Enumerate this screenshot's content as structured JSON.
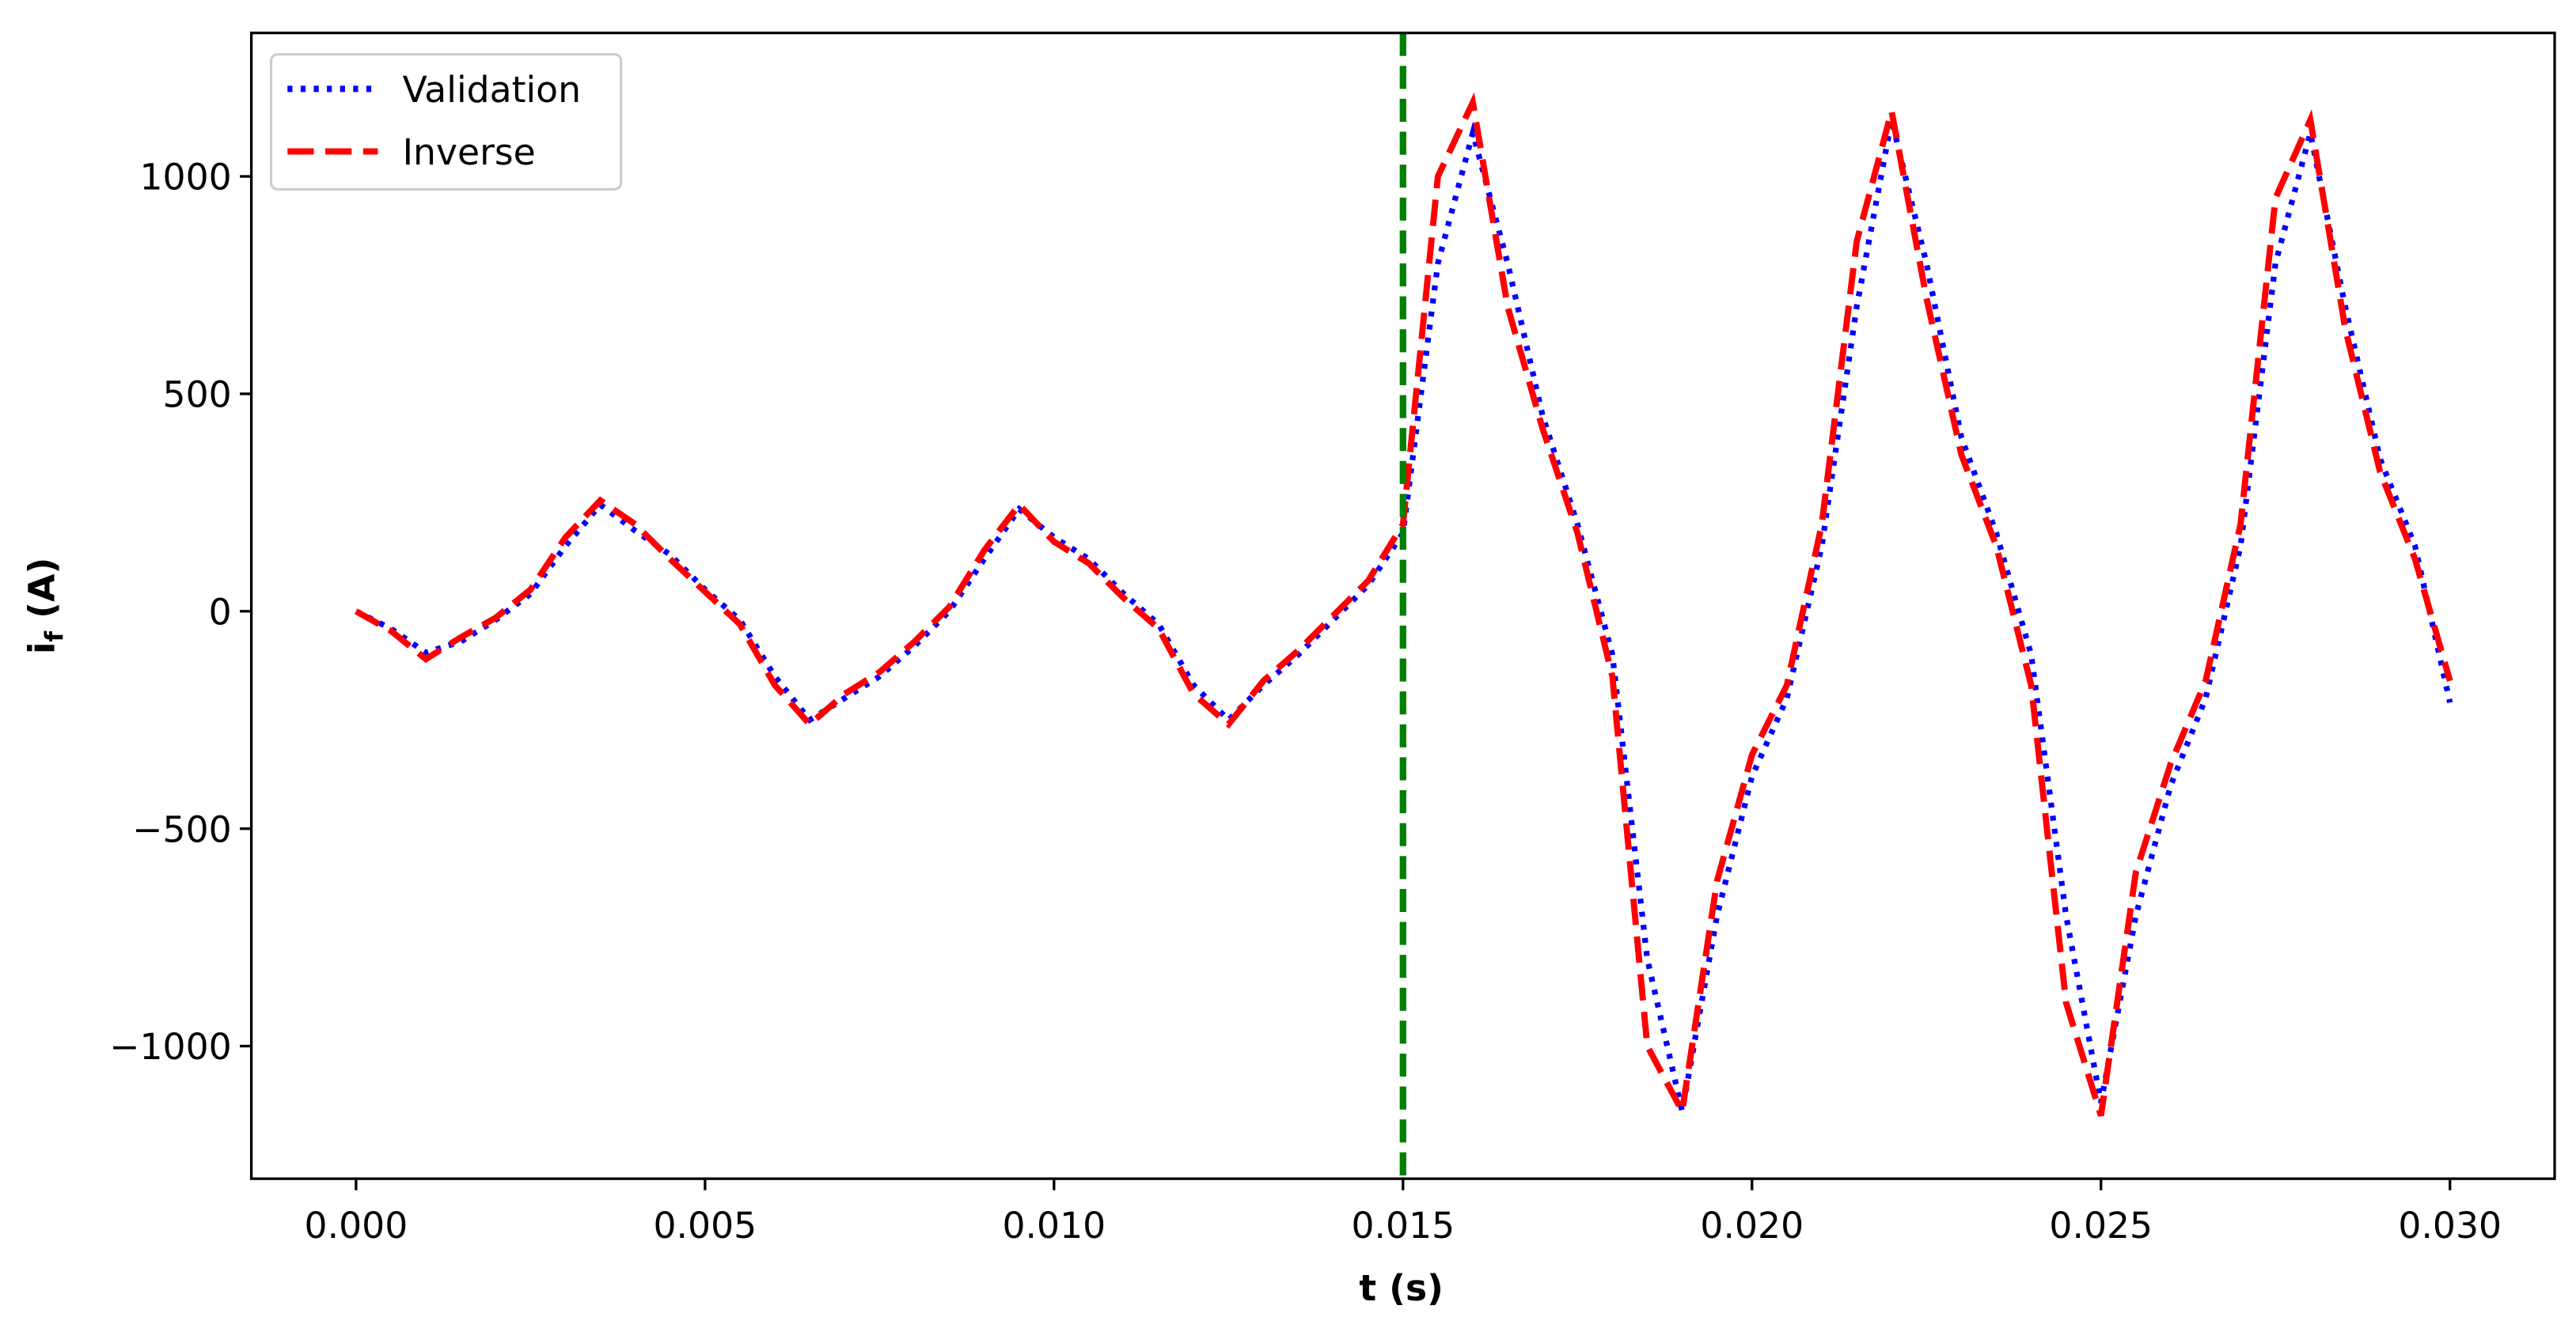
{
  "chart_data": {
    "type": "line",
    "xlabel": "t (s)",
    "ylabel": [
      "i",
      "f",
      " (A)"
    ],
    "x": [
      0,
      0.0005,
      0.001,
      0.0015,
      0.002,
      0.0025,
      0.003,
      0.0035,
      0.004,
      0.0045,
      0.005,
      0.0055,
      0.006,
      0.0065,
      0.007,
      0.0075,
      0.008,
      0.0085,
      0.009,
      0.0095,
      0.01,
      0.0105,
      0.011,
      0.0115,
      0.012,
      0.0125,
      0.013,
      0.0135,
      0.014,
      0.0145,
      0.015,
      0.0155,
      0.016,
      0.0165,
      0.017,
      0.0175,
      0.018,
      0.0185,
      0.019,
      0.0195,
      0.02,
      0.0205,
      0.021,
      0.0215,
      0.022,
      0.0225,
      0.023,
      0.0235,
      0.024,
      0.0245,
      0.025,
      0.0255,
      0.026,
      0.0265,
      0.027,
      0.0275,
      0.028,
      0.0285,
      0.029,
      0.0295,
      0.03
    ],
    "series": [
      {
        "name": "Validation",
        "color": "#0000ff",
        "style": "dotted",
        "values": [
          0,
          -40,
          -95,
          -70,
          -20,
          40,
          150,
          245,
          185,
          130,
          50,
          -20,
          -150,
          -250,
          -200,
          -150,
          -80,
          0,
          120,
          235,
          170,
          120,
          40,
          -30,
          -170,
          -250,
          -170,
          -100,
          -20,
          60,
          180,
          800,
          1100,
          800,
          450,
          200,
          -100,
          -800,
          -1150,
          -700,
          -380,
          -200,
          150,
          700,
          1130,
          800,
          400,
          180,
          -100,
          -700,
          -1130,
          -700,
          -400,
          -200,
          150,
          800,
          1100,
          700,
          350,
          150,
          -210
        ]
      },
      {
        "name": "Inverse",
        "color": "#ff0000",
        "style": "dashed",
        "values": [
          0,
          -45,
          -110,
          -60,
          -15,
          50,
          170,
          255,
          200,
          120,
          45,
          -30,
          -170,
          -260,
          -190,
          -140,
          -70,
          10,
          140,
          245,
          160,
          110,
          30,
          -40,
          -190,
          -260,
          -160,
          -90,
          -10,
          70,
          200,
          1000,
          1170,
          700,
          420,
          180,
          -150,
          -1000,
          -1150,
          -620,
          -330,
          -170,
          200,
          850,
          1150,
          720,
          360,
          150,
          -170,
          -900,
          -1160,
          -600,
          -350,
          -160,
          200,
          950,
          1130,
          650,
          320,
          120,
          -160
        ]
      }
    ],
    "vline": {
      "x": 0.015,
      "color": "#008000"
    },
    "xlim": [
      -0.0015,
      0.0315
    ],
    "ylim": [
      -1305,
      1330
    ],
    "xticks": [
      {
        "value": 0,
        "label": "0.000"
      },
      {
        "value": 0.005,
        "label": "0.005"
      },
      {
        "value": 0.01,
        "label": "0.010"
      },
      {
        "value": 0.015,
        "label": "0.015"
      },
      {
        "value": 0.02,
        "label": "0.020"
      },
      {
        "value": 0.025,
        "label": "0.025"
      },
      {
        "value": 0.03,
        "label": "0.030"
      }
    ],
    "yticks": [
      {
        "value": -1000,
        "label": "−1000"
      },
      {
        "value": -500,
        "label": "−500"
      },
      0,
      500,
      1000
    ],
    "legend": "upper left",
    "grid": false
  }
}
